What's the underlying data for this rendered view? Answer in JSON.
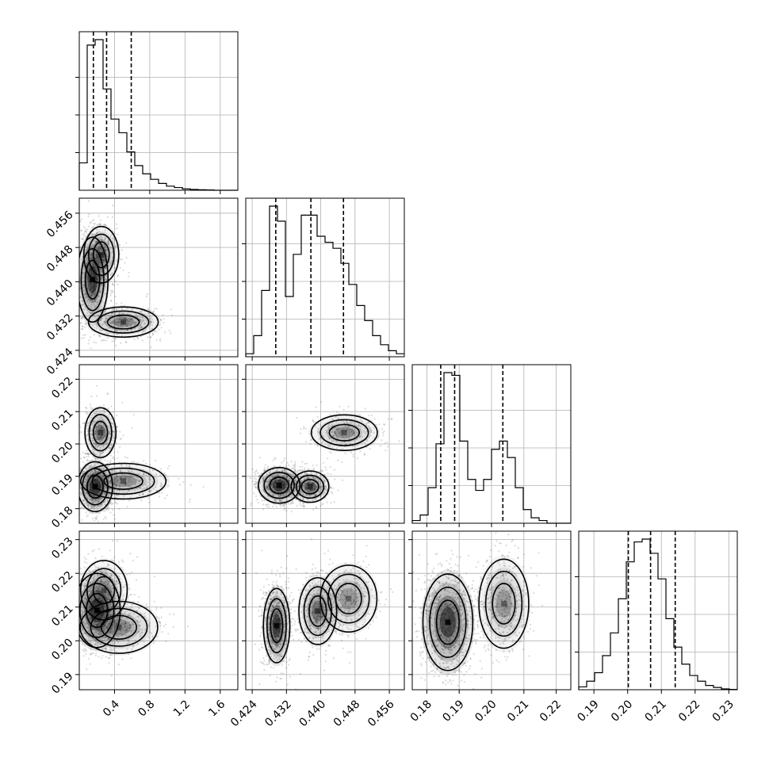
{
  "chart_data": {
    "type": "corner",
    "params": [
      {
        "range": [
          0.0,
          1.8
        ],
        "ticks": [
          0.4,
          0.8,
          1.2,
          1.6
        ],
        "tick_labels": [
          "0.4",
          "0.8",
          "1.2",
          "1.6"
        ]
      },
      {
        "range": [
          0.4225,
          0.4595
        ],
        "ticks": [
          0.424,
          0.432,
          0.44,
          0.448,
          0.456
        ],
        "tick_labels": [
          "0.424",
          "0.432",
          "0.440",
          "0.448",
          "0.456"
        ]
      },
      {
        "range": [
          0.1755,
          0.2245
        ],
        "ticks": [
          0.18,
          0.19,
          0.2,
          0.21,
          0.22
        ],
        "tick_labels": [
          "0.18",
          "0.19",
          "0.20",
          "0.21",
          "0.22"
        ]
      },
      {
        "range": [
          0.1855,
          0.2325
        ],
        "ticks": [
          0.19,
          0.2,
          0.21,
          0.22,
          0.23
        ],
        "tick_labels": [
          "0.19",
          "0.20",
          "0.21",
          "0.22",
          "0.23"
        ]
      }
    ],
    "quantiles": [
      [
        0.16,
        0.31,
        0.59
      ],
      [
        0.4295,
        0.4377,
        0.4453
      ],
      [
        0.1843,
        0.1886,
        0.2035
      ],
      [
        0.2002,
        0.2068,
        0.2141
      ]
    ],
    "histograms": [
      {
        "bins": 20,
        "counts": [
          10,
          53,
          55,
          37,
          26,
          21,
          14,
          9,
          6,
          4,
          2.5,
          1.5,
          1,
          0.5,
          0.3,
          0.2,
          0.1,
          0,
          0,
          0
        ]
      },
      {
        "bins": 20,
        "counts": [
          1,
          7,
          22,
          50,
          45,
          20,
          34,
          47,
          47,
          40,
          38,
          36,
          31,
          24,
          17,
          12,
          7,
          4,
          2,
          1
        ]
      },
      {
        "bins": 20,
        "counts": [
          1,
          3,
          13,
          29,
          55,
          54,
          30,
          16,
          12,
          16,
          27,
          30,
          24,
          13,
          5,
          2,
          1,
          0,
          0,
          0
        ]
      },
      {
        "bins": 20,
        "counts": [
          1,
          3,
          6,
          12,
          20,
          32,
          45,
          52,
          53,
          48,
          39,
          25,
          15,
          9,
          5,
          3,
          1.5,
          0.8,
          0.3,
          0.1
        ]
      }
    ],
    "density_pairs": [
      {
        "x": 0,
        "y": 1,
        "modes": [
          [
            0.15,
            0.4405,
            0.08,
            0.0045,
            1.0
          ],
          [
            0.25,
            0.4463,
            0.09,
            0.003,
            0.6
          ],
          [
            0.5,
            0.4306,
            0.18,
            0.0016,
            0.55
          ]
        ]
      },
      {
        "x": 0,
        "y": 2,
        "modes": [
          [
            0.18,
            0.1868,
            0.09,
            0.0035,
            1.0
          ],
          [
            0.24,
            0.2035,
            0.08,
            0.0035,
            0.6
          ],
          [
            0.5,
            0.1885,
            0.22,
            0.0025,
            0.5
          ]
        ]
      },
      {
        "x": 0,
        "y": 3,
        "modes": [
          [
            0.2,
            0.209,
            0.12,
            0.005,
            1.0
          ],
          [
            0.45,
            0.204,
            0.2,
            0.0035,
            0.5
          ],
          [
            0.28,
            0.215,
            0.12,
            0.004,
            0.4
          ]
        ]
      },
      {
        "x": 1,
        "y": 2,
        "modes": [
          [
            0.4303,
            0.1872,
            0.0022,
            0.0025,
            1.0
          ],
          [
            0.4375,
            0.1868,
            0.002,
            0.0022,
            0.7
          ],
          [
            0.4455,
            0.2035,
            0.0035,
            0.0025,
            0.5
          ]
        ]
      },
      {
        "x": 1,
        "y": 3,
        "modes": [
          [
            0.4297,
            0.2045,
            0.0014,
            0.005,
            1.0
          ],
          [
            0.4393,
            0.2088,
            0.002,
            0.0045,
            0.65
          ],
          [
            0.4465,
            0.2125,
            0.003,
            0.0045,
            0.45
          ]
        ]
      },
      {
        "x": 2,
        "y": 3,
        "modes": [
          [
            0.1865,
            0.2055,
            0.0035,
            0.0065,
            1.0
          ],
          [
            0.2038,
            0.211,
            0.0035,
            0.006,
            0.45
          ]
        ]
      }
    ]
  }
}
